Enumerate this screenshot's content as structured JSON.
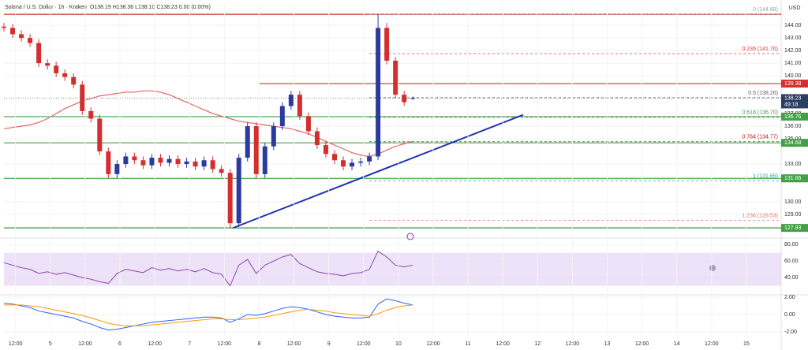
{
  "chart_data": [
    {
      "type": "candlestick",
      "title": "Solana / U.S. Dollar · 1h · Kraken",
      "ohlc_text": "O138.19 H138.36 L138.10 C138.23 0.00 (0.00%)",
      "currency": "USD",
      "x": [
        0,
        3,
        6,
        9,
        12,
        15,
        18,
        21,
        24,
        27,
        30,
        33,
        36,
        39,
        42,
        45,
        48,
        51,
        54,
        57,
        60,
        63,
        66,
        69,
        72,
        75,
        78,
        81,
        84,
        87,
        90,
        93,
        96,
        99,
        102,
        105,
        108,
        111,
        114,
        117,
        120,
        123,
        126,
        129,
        132,
        135,
        138,
        141
      ],
      "open": [
        143.9,
        143.8,
        143.3,
        143.0,
        142.6,
        141.0,
        140.8,
        140.2,
        139.9,
        139.3,
        137.2,
        136.6,
        134.0,
        132.2,
        133.0,
        133.6,
        133.3,
        132.9,
        133.5,
        133.1,
        133.4,
        133.0,
        133.2,
        132.8,
        133.3,
        132.6,
        132.3,
        128.3,
        133.5,
        136.0,
        132.2,
        134.4,
        136.0,
        137.6,
        138.5,
        136.8,
        135.6,
        134.5,
        133.8,
        133.3,
        132.8,
        133.1,
        133.2,
        133.6,
        143.8,
        141.2,
        138.5,
        138.19
      ],
      "high": [
        144.2,
        144.1,
        143.6,
        143.3,
        142.9,
        141.3,
        141.1,
        140.5,
        140.2,
        139.6,
        137.5,
        136.9,
        134.3,
        133.3,
        133.9,
        133.9,
        133.6,
        133.8,
        133.8,
        133.7,
        133.7,
        133.5,
        133.5,
        133.6,
        133.6,
        132.9,
        132.6,
        133.8,
        136.3,
        136.3,
        134.7,
        136.3,
        137.9,
        138.8,
        138.8,
        137.1,
        135.9,
        134.8,
        134.1,
        133.6,
        133.4,
        133.5,
        133.9,
        144.88,
        144.2,
        141.5,
        138.8,
        138.36
      ],
      "low": [
        143.5,
        143.0,
        142.7,
        142.3,
        140.7,
        140.5,
        139.9,
        139.6,
        139.0,
        136.9,
        136.3,
        133.7,
        131.9,
        131.9,
        132.7,
        133.0,
        132.6,
        132.6,
        132.8,
        132.8,
        132.7,
        132.7,
        132.5,
        132.5,
        132.3,
        132.0,
        127.93,
        128.0,
        133.2,
        131.9,
        131.9,
        134.1,
        135.7,
        137.3,
        136.5,
        135.3,
        134.2,
        133.5,
        133.0,
        132.5,
        132.5,
        132.8,
        132.9,
        133.3,
        140.9,
        138.2,
        137.6,
        138.1
      ],
      "close": [
        143.8,
        143.3,
        143.0,
        142.6,
        141.0,
        140.8,
        140.2,
        139.9,
        139.3,
        137.2,
        136.6,
        134.0,
        132.2,
        133.0,
        133.6,
        133.3,
        132.9,
        133.5,
        133.1,
        133.4,
        133.0,
        133.2,
        132.8,
        133.3,
        132.6,
        132.3,
        128.3,
        133.5,
        136.0,
        132.2,
        134.4,
        136.0,
        137.6,
        138.5,
        136.8,
        135.6,
        134.5,
        133.8,
        133.3,
        132.8,
        133.1,
        133.2,
        133.6,
        143.8,
        141.2,
        138.5,
        137.9,
        138.23
      ],
      "up_color": "#2b3a9e",
      "down_color": "#d32f2f",
      "moving_average": {
        "color": "#e06666",
        "values": [
          135.8,
          135.9,
          136.0,
          136.1,
          136.3,
          136.6,
          137.0,
          137.4,
          137.7,
          138.0,
          138.2,
          138.4,
          138.5,
          138.6,
          138.7,
          138.7,
          138.8,
          138.8,
          138.7,
          138.5,
          138.2,
          137.9,
          137.6,
          137.3,
          137.0,
          136.8,
          136.6,
          136.4,
          136.3,
          136.2,
          136.1,
          136.0,
          135.9,
          135.8,
          135.6,
          135.4,
          135.1,
          134.8,
          134.5,
          134.2,
          133.9,
          133.7,
          133.6,
          133.8,
          134.1,
          134.4,
          134.6,
          134.8
        ]
      },
      "levels": [
        {
          "value": 144.88,
          "color": "#d32f2f",
          "x_start": 0
        },
        {
          "value": 139.38,
          "label": "139.38",
          "color": "#d32f2f",
          "x_start": 88
        },
        {
          "value": 136.76,
          "label": "136.76",
          "color": "#43a047",
          "x_start": 0
        },
        {
          "value": 134.68,
          "label": "134.68",
          "color": "#43a047",
          "x_start": 0
        },
        {
          "value": 131.86,
          "label": "131.86",
          "color": "#43a047",
          "x_start": 0
        },
        {
          "value": 127.93,
          "label": "127.93",
          "color": "#43a047",
          "x_start": 0
        }
      ],
      "fib": [
        {
          "value": 144.88,
          "label": "0 (144.88)",
          "color": "#9e9e9e"
        },
        {
          "value": 141.76,
          "label": "0.236 (141.76)",
          "color": "#e53935"
        },
        {
          "value": 138.26,
          "label": "0.5 (138.26)",
          "color": "#616161"
        },
        {
          "value": 136.7,
          "label": "0.618 (136.70)",
          "color": "#43a047"
        },
        {
          "value": 134.77,
          "label": "0.764 (134.77)",
          "color": "#b71c1c"
        },
        {
          "value": 131.65,
          "label": "1 (131.65)",
          "color": "#26a69a"
        },
        {
          "value": 128.53,
          "label": "1.236 (128.53)",
          "color": "#e57373"
        }
      ],
      "fib_x_start": 126,
      "last_price": {
        "value": 138.23,
        "label": "138.23",
        "countdown": "49:18",
        "color": "#2a3f5f"
      },
      "trendline": {
        "x": [
          79,
          179
        ],
        "y": [
          127.93,
          136.9
        ],
        "color": "#2333b0"
      },
      "xlim": [
        0,
        268
      ],
      "ylim": [
        127.25,
        145.7
      ],
      "yticks": [
        {
          "value": 144,
          "label": "144.00"
        },
        {
          "value": 143,
          "label": "143.00"
        },
        {
          "value": 142,
          "label": "142.00"
        },
        {
          "value": 141,
          "label": "141.00"
        },
        {
          "value": 140,
          "label": "140.00"
        },
        {
          "value": 137,
          "label": "137.00"
        },
        {
          "value": 136,
          "label": "136.00"
        },
        {
          "value": 135,
          "label": "135.00"
        },
        {
          "value": 133,
          "label": "133.00"
        },
        {
          "value": 132,
          "label": "132.00"
        },
        {
          "value": 130,
          "label": "130.00"
        },
        {
          "value": 129,
          "label": "129.00"
        },
        {
          "value": 128,
          "label": "128.00"
        }
      ],
      "grid": true
    },
    {
      "type": "line",
      "x": [
        0,
        3,
        6,
        9,
        12,
        15,
        18,
        21,
        24,
        27,
        30,
        33,
        36,
        39,
        42,
        45,
        48,
        51,
        54,
        57,
        60,
        63,
        66,
        69,
        72,
        75,
        78,
        81,
        84,
        87,
        90,
        93,
        96,
        99,
        102,
        105,
        108,
        111,
        114,
        117,
        120,
        123,
        126,
        129,
        132,
        135,
        138,
        141
      ],
      "series": [
        {
          "color": "#8e44ad",
          "values": [
            58,
            55,
            52,
            50,
            45,
            47,
            44,
            46,
            43,
            40,
            38,
            35,
            33,
            45,
            50,
            48,
            46,
            52,
            49,
            51,
            48,
            50,
            47,
            51,
            46,
            44,
            30,
            55,
            62,
            45,
            55,
            60,
            65,
            68,
            57,
            52,
            47,
            45,
            44,
            42,
            45,
            46,
            50,
            72,
            65,
            55,
            53,
            55
          ]
        }
      ],
      "band": [
        30,
        70
      ],
      "band_color": "#e6d5f5",
      "xlim": [
        0,
        268
      ],
      "ylim": [
        20,
        87
      ],
      "yticks": [
        {
          "value": 80,
          "label": "80.00"
        },
        {
          "value": 60,
          "label": "60.00"
        },
        {
          "value": 40,
          "label": "40.00"
        }
      ],
      "grid": true
    },
    {
      "type": "line",
      "x": [
        0,
        3,
        6,
        9,
        12,
        15,
        18,
        21,
        24,
        27,
        30,
        33,
        36,
        39,
        42,
        45,
        48,
        51,
        54,
        57,
        60,
        63,
        66,
        69,
        72,
        75,
        78,
        81,
        84,
        87,
        90,
        93,
        96,
        99,
        102,
        105,
        108,
        111,
        114,
        117,
        120,
        123,
        126,
        129,
        132,
        135,
        138,
        141
      ],
      "series": [
        {
          "color": "#2962ff",
          "values": [
            1.3,
            1.2,
            1.0,
            0.8,
            0.4,
            0.2,
            0,
            -0.2,
            -0.4,
            -0.8,
            -1.1,
            -1.5,
            -1.8,
            -1.7,
            -1.5,
            -1.3,
            -1.1,
            -0.9,
            -0.8,
            -0.7,
            -0.6,
            -0.5,
            -0.4,
            -0.3,
            -0.3,
            -0.4,
            -0.9,
            -0.5,
            0,
            -0.1,
            0.1,
            0.4,
            0.7,
            0.9,
            0.8,
            0.6,
            0.3,
            0,
            -0.2,
            -0.3,
            -0.4,
            -0.4,
            -0.3,
            1.2,
            1.8,
            1.6,
            1.3,
            1.1
          ]
        },
        {
          "color": "#ff9800",
          "values": [
            1.1,
            1.1,
            1.1,
            1.0,
            0.9,
            0.7,
            0.5,
            0.3,
            0.1,
            -0.1,
            -0.4,
            -0.7,
            -1.0,
            -1.2,
            -1.3,
            -1.3,
            -1.3,
            -1.2,
            -1.1,
            -1.0,
            -0.9,
            -0.8,
            -0.7,
            -0.6,
            -0.5,
            -0.5,
            -0.6,
            -0.6,
            -0.5,
            -0.4,
            -0.3,
            -0.1,
            0.1,
            0.3,
            0.5,
            0.6,
            0.5,
            0.4,
            0.2,
            0.1,
            0,
            -0.1,
            -0.2,
            0.1,
            0.5,
            0.8,
            1.0,
            1.1
          ]
        }
      ],
      "xlim": [
        0,
        268
      ],
      "ylim": [
        -2.55,
        2.18
      ],
      "yticks": [
        {
          "value": 2,
          "label": "2.00"
        },
        {
          "value": 0,
          "label": "0.00"
        },
        {
          "value": -2,
          "label": "-2.00"
        }
      ],
      "xticks": [
        {
          "value": 4,
          "label": "12:00"
        },
        {
          "value": 16,
          "label": "5"
        },
        {
          "value": 28,
          "label": "12:00"
        },
        {
          "value": 40,
          "label": "6"
        },
        {
          "value": 52,
          "label": "12:00"
        },
        {
          "value": 64,
          "label": "7"
        },
        {
          "value": 76,
          "label": "12:00"
        },
        {
          "value": 88,
          "label": "8"
        },
        {
          "value": 100,
          "label": "12:00"
        },
        {
          "value": 112,
          "label": "9"
        },
        {
          "value": 124,
          "label": "12:00"
        },
        {
          "value": 136,
          "label": "10"
        },
        {
          "value": 148,
          "label": "12:00"
        },
        {
          "value": 160,
          "label": "11"
        },
        {
          "value": 172,
          "label": "12:00"
        },
        {
          "value": 184,
          "label": "12"
        },
        {
          "value": 196,
          "label": "12:00"
        },
        {
          "value": 208,
          "label": "13"
        },
        {
          "value": 220,
          "label": "12:00"
        },
        {
          "value": 232,
          "label": "14"
        },
        {
          "value": 244,
          "label": "12:00"
        },
        {
          "value": 256,
          "label": "15"
        }
      ],
      "grid": true
    }
  ]
}
